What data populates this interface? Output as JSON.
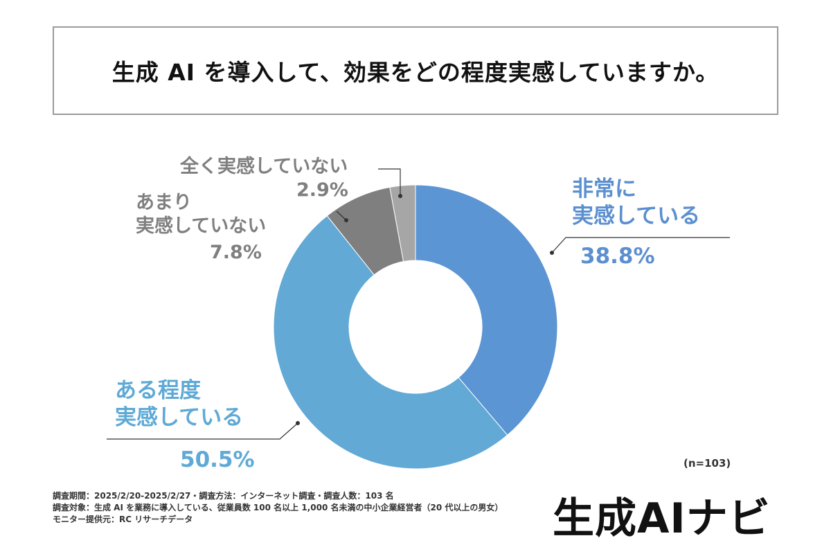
{
  "title": "生成 AI を導入して、効果をどの程度実感していますか。",
  "chart_data": {
    "type": "pie",
    "title": "生成 AI を導入して、効果をどの程度実感していますか。",
    "slices": [
      {
        "label": "非常に実感している",
        "value": 38.8,
        "color": "#5b95d3",
        "display": "38.8%"
      },
      {
        "label": "ある程度実感している",
        "value": 50.5,
        "color": "#62a9d6",
        "display": "50.5%"
      },
      {
        "label": "あまり実感していない",
        "value": 7.8,
        "color": "#7f7f7f",
        "display": "7.8%"
      },
      {
        "label": "全く実感していない",
        "value": 2.9,
        "color": "#a6a6a6",
        "display": "2.9%"
      }
    ],
    "donut": true,
    "start": "top, clockwise"
  },
  "labels": {
    "very_line1": "非常に",
    "very_line2": "実感している",
    "very_pct": "38.8%",
    "some_line1": "ある程度",
    "some_line2": "実感している",
    "some_pct": "50.5%",
    "notmuch_line1": "あまり",
    "notmuch_line2": "実感していない",
    "notmuch_pct": "7.8%",
    "none_line1": "全く実感していない",
    "none_pct": "2.9%"
  },
  "sample_size": "(n=103)",
  "notes": [
    "調査期間：2025/2/20-2025/2/27・調査方法：インターネット調査・調査人数：103 名",
    "調査対象：生成 AI を業務に導入している、従業員数 100 名以上 1,000 名未満の中小企業経営者（20 代以上の男女）",
    "モニター提供元：RC リサーチデータ"
  ],
  "brand": "生成AIナビ"
}
